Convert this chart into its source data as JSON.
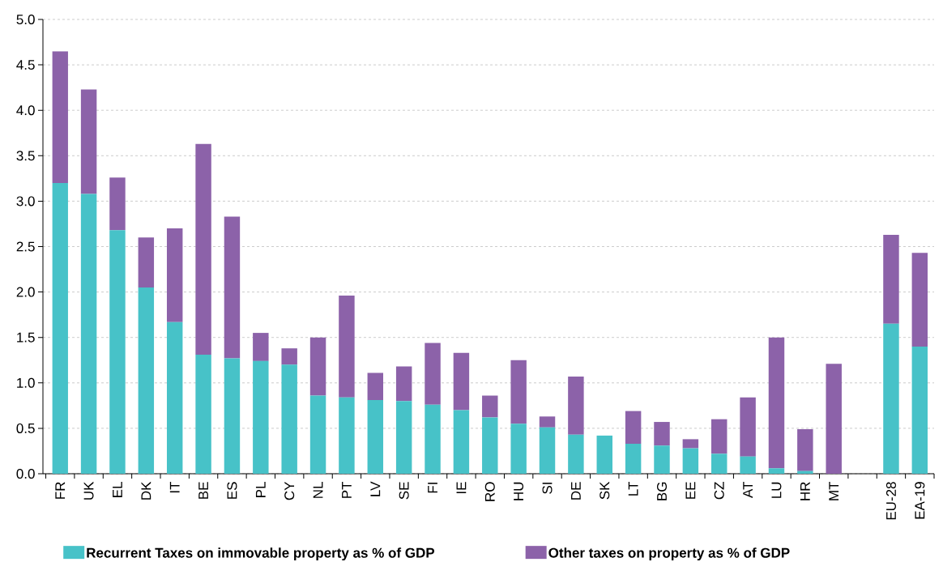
{
  "chart_data": {
    "type": "bar",
    "stacked": true,
    "grid": "y",
    "legend": "bottom",
    "categories": [
      "FR",
      "UK",
      "EL",
      "DK",
      "IT",
      "BE",
      "ES",
      "PL",
      "CY",
      "NL",
      "PT",
      "LV",
      "SE",
      "FI",
      "IE",
      "RO",
      "HU",
      "SI",
      "DE",
      "SK",
      "LT",
      "BG",
      "EE",
      "CZ",
      "AT",
      "LU",
      "HR",
      "MT",
      null,
      "EU-28",
      "EA-19"
    ],
    "series": [
      {
        "name": "Recurrent Taxes on immovable property as % of GDP",
        "color": "#47c2c8",
        "values": [
          3.2,
          3.08,
          2.68,
          2.05,
          1.67,
          1.31,
          1.27,
          1.24,
          1.2,
          0.86,
          0.84,
          0.81,
          0.8,
          0.76,
          0.7,
          0.62,
          0.55,
          0.51,
          0.43,
          0.42,
          0.33,
          0.31,
          0.28,
          0.22,
          0.19,
          0.06,
          0.03,
          0,
          null,
          1.65,
          1.4
        ]
      },
      {
        "name": "Other taxes on property as % of GDP",
        "color": "#8c62a9",
        "values": [
          1.45,
          1.15,
          0.58,
          0.55,
          1.03,
          2.32,
          1.56,
          0.31,
          0.18,
          0.64,
          1.12,
          0.3,
          0.38,
          0.68,
          0.63,
          0.24,
          0.7,
          0.12,
          0.64,
          0,
          0.36,
          0.26,
          0.1,
          0.38,
          0.65,
          1.44,
          0.46,
          1.21,
          null,
          0.98,
          1.03
        ]
      }
    ],
    "ylim": [
      0,
      5
    ],
    "yticks": [
      {
        "value": 0,
        "label": "0.0"
      },
      {
        "value": 0.5,
        "label": "0.5"
      },
      {
        "value": 1,
        "label": "1.0"
      },
      {
        "value": 1.5,
        "label": "1.5"
      },
      {
        "value": 2,
        "label": "2.0"
      },
      {
        "value": 2.5,
        "label": "2.5"
      },
      {
        "value": 3,
        "label": "3.0"
      },
      {
        "value": 3.5,
        "label": "3.5"
      },
      {
        "value": 4,
        "label": "4.0"
      },
      {
        "value": 4.5,
        "label": "4.5"
      },
      {
        "value": 5,
        "label": "5.0"
      }
    ]
  }
}
